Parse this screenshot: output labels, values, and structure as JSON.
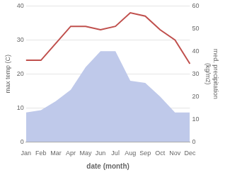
{
  "chart_data": {
    "type": "line",
    "categories": [
      "Jan",
      "Feb",
      "Mar",
      "Apr",
      "May",
      "Jun",
      "Jul",
      "Aug",
      "Sep",
      "Oct",
      "Nov",
      "Dec"
    ],
    "series": [
      {
        "type": "line",
        "color": "#c0504d",
        "values": [
          24,
          24,
          29,
          34,
          34,
          33,
          34,
          38,
          37,
          33,
          30,
          23
        ]
      },
      {
        "type": "area",
        "axis": "y2",
        "color": "#bfc9ea",
        "values": [
          13,
          14,
          18,
          23,
          33,
          40,
          40,
          27,
          26,
          20,
          13,
          13
        ]
      }
    ],
    "xlabel": "date (month)",
    "ylabel": "max temp (C)",
    "y2label": "med. precipitation\n(kg/m2)",
    "ylim": [
      0,
      40
    ],
    "yticks": [
      0,
      10,
      20,
      30,
      40
    ],
    "y2lim": [
      0,
      60
    ],
    "y2ticks": [
      0,
      10,
      20,
      30,
      40,
      50,
      60
    ],
    "grid": true
  }
}
